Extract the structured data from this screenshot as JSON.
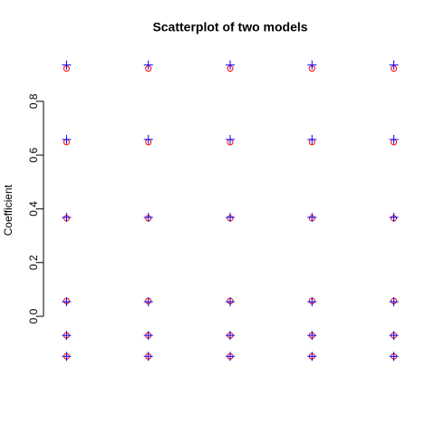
{
  "chart_data": {
    "type": "scatter",
    "title": "Scatterplot of two models",
    "ylabel": "Coefficient",
    "x": [
      1,
      1,
      1,
      1,
      1,
      1,
      2,
      2,
      2,
      2,
      2,
      2,
      3,
      3,
      3,
      3,
      3,
      3,
      4,
      4,
      4,
      4,
      4,
      4,
      5,
      5,
      5,
      5,
      5,
      5
    ],
    "series": [
      {
        "color": "#ff0000",
        "marker": "circle",
        "values": [
          0.922,
          0.648,
          0.365,
          0.057,
          -0.071,
          -0.149,
          0.922,
          0.648,
          0.365,
          0.057,
          -0.071,
          -0.149,
          0.922,
          0.648,
          0.365,
          0.057,
          -0.071,
          -0.149,
          0.922,
          0.648,
          0.365,
          0.057,
          -0.071,
          -0.149,
          0.922,
          0.648,
          0.365,
          0.057,
          -0.071,
          -0.149
        ]
      },
      {
        "color": "#0000ff",
        "marker": "plus",
        "values": [
          0.935,
          0.658,
          0.368,
          0.054,
          -0.071,
          -0.149,
          0.935,
          0.658,
          0.368,
          0.054,
          -0.071,
          -0.149,
          0.935,
          0.658,
          0.368,
          0.054,
          -0.071,
          -0.149,
          0.935,
          0.658,
          0.368,
          0.054,
          -0.071,
          -0.149,
          0.935,
          0.658,
          0.368,
          0.054,
          -0.071,
          -0.149
        ]
      }
    ],
    "xlim": [
      0.84,
      5.16
    ],
    "ylim": [
      -0.192,
      0.978
    ],
    "yticks": [
      {
        "value": 0,
        "label": "0.0"
      },
      0.2,
      0.4,
      0.6,
      0.8
    ]
  }
}
